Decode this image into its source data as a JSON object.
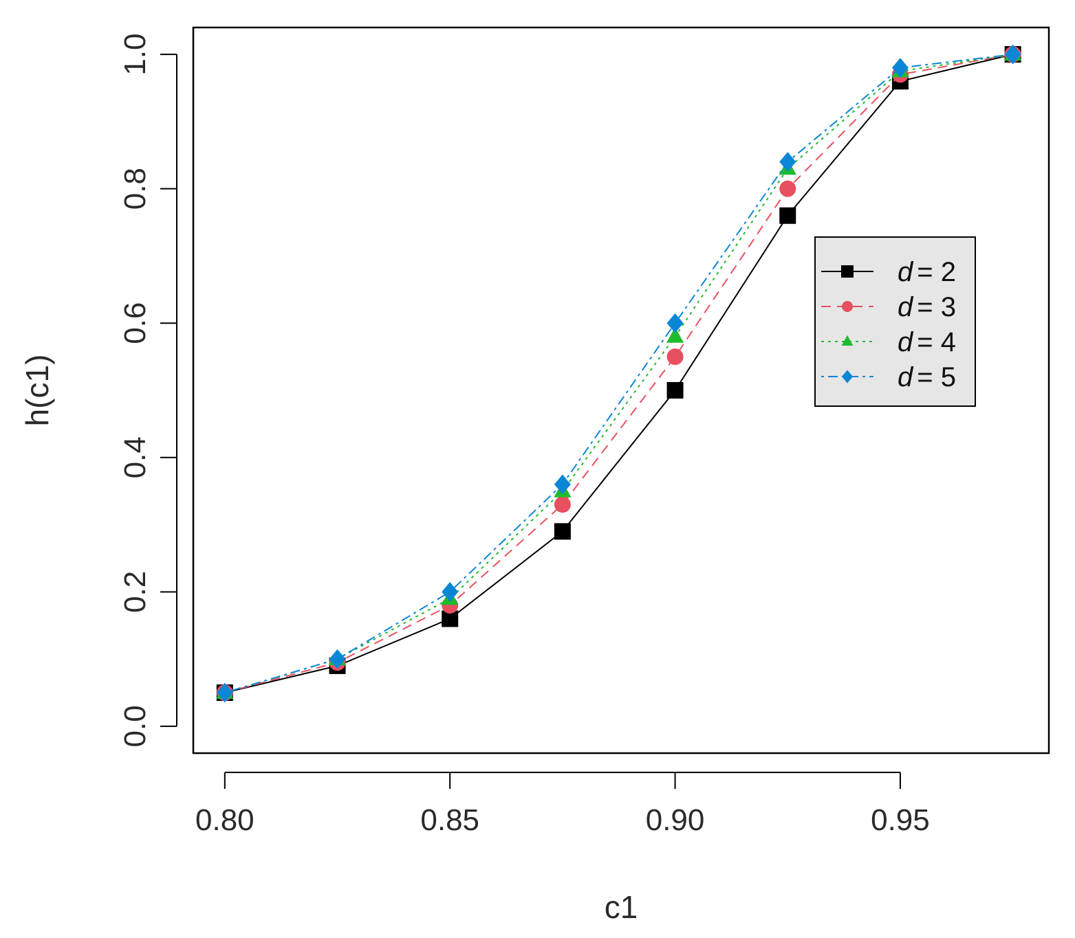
{
  "chart_data": {
    "type": "line",
    "xlabel": "c1",
    "ylabel": "h(c1)",
    "xlim": [
      0.793,
      0.983
    ],
    "ylim": [
      -0.04,
      1.04
    ],
    "x_ticks": [
      0.8,
      0.85,
      0.9,
      0.95
    ],
    "x_tick_labels": [
      "0.80",
      "0.85",
      "0.90",
      "0.95"
    ],
    "y_ticks": [
      0.0,
      0.2,
      0.4,
      0.6,
      0.8,
      1.0
    ],
    "y_tick_labels": [
      "0.0",
      "0.2",
      "0.4",
      "0.6",
      "0.8",
      "1.0"
    ],
    "grid": false,
    "legend_position": "right",
    "x": [
      0.8,
      0.825,
      0.85,
      0.875,
      0.9,
      0.925,
      0.95,
      0.975
    ],
    "series": [
      {
        "name": "d = 2",
        "legend_var": "d",
        "legend_value": "= 2",
        "color": "#000000",
        "marker": "square",
        "dash": "none",
        "values": [
          0.05,
          0.09,
          0.16,
          0.29,
          0.5,
          0.76,
          0.96,
          1.0
        ]
      },
      {
        "name": "d = 3",
        "legend_var": "d",
        "legend_value": "= 3",
        "color": "#e8505f",
        "marker": "circle",
        "dash": "dashed",
        "values": [
          0.05,
          0.095,
          0.18,
          0.33,
          0.55,
          0.8,
          0.97,
          1.0
        ]
      },
      {
        "name": "d = 4",
        "legend_var": "d",
        "legend_value": "= 4",
        "color": "#1fbb2f",
        "marker": "triangle",
        "dash": "dotted",
        "values": [
          0.05,
          0.1,
          0.19,
          0.35,
          0.58,
          0.83,
          0.975,
          1.0
        ]
      },
      {
        "name": "d = 5",
        "legend_var": "d",
        "legend_value": "= 5",
        "color": "#0a86d6",
        "marker": "diamond",
        "dash": "dotdash",
        "values": [
          0.05,
          0.1,
          0.2,
          0.36,
          0.6,
          0.84,
          0.98,
          1.0
        ]
      }
    ]
  }
}
